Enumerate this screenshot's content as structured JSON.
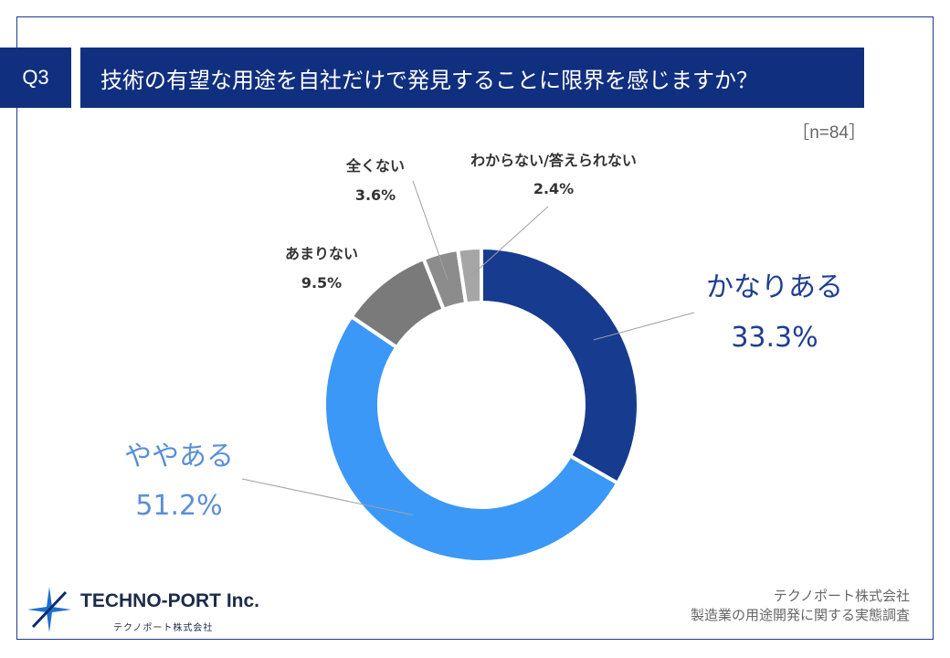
{
  "question": {
    "badge": "Q3",
    "title": "技術の有望な用途を自社だけで発見することに限界を感じますか？"
  },
  "sample_size": "［n=84］",
  "chart_data": {
    "type": "pie",
    "style": "donut",
    "categories": [
      "かなりある",
      "ややある",
      "あまりない",
      "全くない",
      "わからない/答えられない"
    ],
    "values": [
      33.3,
      51.2,
      9.5,
      3.6,
      2.4
    ],
    "labels": [
      "33.3%",
      "51.2%",
      "9.5%",
      "3.6%",
      "2.4%"
    ],
    "colors": [
      "#173b8f",
      "#3b98f7",
      "#7a7a7a",
      "#8c8c8c",
      "#a6a6a6"
    ],
    "start_angle_deg": 0,
    "direction": "clockwise"
  },
  "footer": {
    "logo_text": "TECHNO-PORT",
    "logo_inc": "Inc.",
    "logo_sub": "テクノポート株式会社",
    "source_company": "テクノポート株式会社",
    "source_survey": "製造業の用途開発に関する実態調査"
  }
}
